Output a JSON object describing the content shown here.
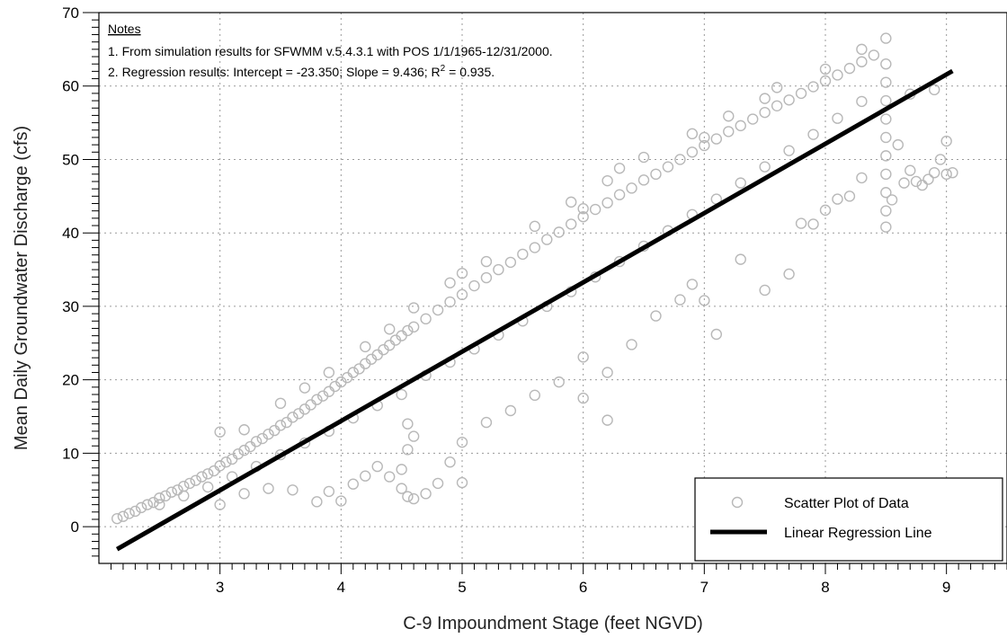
{
  "chart_data": {
    "type": "scatter",
    "title": "",
    "xlabel": "C-9 Impoundment Stage (feet NGVD)",
    "ylabel": "Mean Daily Groundwater Discharge (cfs)",
    "xlim": [
      2,
      9.5
    ],
    "ylim": [
      -5,
      70
    ],
    "x_ticks": [
      3,
      4,
      5,
      6,
      7,
      8,
      9
    ],
    "y_ticks": [
      0,
      10,
      20,
      30,
      40,
      50,
      60,
      70
    ],
    "grid": true,
    "notes": {
      "heading": "Notes",
      "line1": "1. From simulation results for SFWMM v.5.4.3.1 with POS 1/1/1965-12/31/2000.",
      "line2_prefix": "2. Regression results: Intercept = -23.350; Slope = 9.436; R",
      "line2_sup": "2",
      "line2_suffix": " = 0.935."
    },
    "regression": {
      "intercept": -23.35,
      "slope": 9.436,
      "x_range": [
        2.15,
        9.05
      ]
    },
    "legend": {
      "placement": "bottom-right",
      "entries": [
        "Scatter Plot of Data",
        "Linear Regression Line"
      ]
    },
    "series": [
      {
        "name": "Scatter Plot of Data",
        "color": "#b8b8b8",
        "points": [
          [
            2.15,
            1.1
          ],
          [
            2.2,
            1.4
          ],
          [
            2.25,
            1.8
          ],
          [
            2.3,
            2.1
          ],
          [
            2.35,
            2.6
          ],
          [
            2.4,
            3.0
          ],
          [
            2.45,
            3.3
          ],
          [
            2.5,
            3.9
          ],
          [
            2.55,
            4.2
          ],
          [
            2.6,
            4.7
          ],
          [
            2.65,
            5.0
          ],
          [
            2.7,
            5.5
          ],
          [
            2.75,
            5.9
          ],
          [
            2.8,
            6.3
          ],
          [
            2.85,
            6.8
          ],
          [
            2.9,
            7.2
          ],
          [
            2.95,
            7.6
          ],
          [
            3.0,
            8.3
          ],
          [
            3.05,
            8.8
          ],
          [
            3.1,
            9.2
          ],
          [
            3.15,
            9.9
          ],
          [
            3.2,
            10.4
          ],
          [
            3.25,
            10.9
          ],
          [
            3.3,
            11.6
          ],
          [
            3.35,
            12.0
          ],
          [
            3.4,
            12.6
          ],
          [
            3.45,
            13.1
          ],
          [
            3.5,
            13.8
          ],
          [
            3.55,
            14.2
          ],
          [
            3.6,
            14.9
          ],
          [
            3.65,
            15.4
          ],
          [
            3.7,
            16.0
          ],
          [
            3.75,
            16.6
          ],
          [
            3.8,
            17.3
          ],
          [
            3.85,
            17.8
          ],
          [
            3.9,
            18.4
          ],
          [
            3.95,
            19.1
          ],
          [
            4.0,
            19.7
          ],
          [
            4.05,
            20.3
          ],
          [
            4.1,
            21.0
          ],
          [
            4.15,
            21.5
          ],
          [
            4.2,
            22.2
          ],
          [
            4.25,
            22.8
          ],
          [
            4.3,
            23.4
          ],
          [
            4.35,
            24.1
          ],
          [
            4.4,
            24.7
          ],
          [
            4.45,
            25.4
          ],
          [
            4.5,
            26.0
          ],
          [
            4.55,
            26.7
          ],
          [
            4.6,
            27.2
          ],
          [
            4.7,
            28.3
          ],
          [
            4.8,
            29.5
          ],
          [
            4.9,
            30.6
          ],
          [
            5.0,
            31.6
          ],
          [
            5.1,
            32.8
          ],
          [
            5.2,
            33.9
          ],
          [
            5.3,
            35.0
          ],
          [
            5.4,
            36.0
          ],
          [
            5.5,
            37.1
          ],
          [
            5.6,
            38.0
          ],
          [
            5.7,
            39.1
          ],
          [
            5.8,
            40.1
          ],
          [
            5.9,
            41.2
          ],
          [
            6.0,
            42.2
          ],
          [
            6.1,
            43.2
          ],
          [
            6.2,
            44.1
          ],
          [
            6.3,
            45.2
          ],
          [
            6.4,
            46.1
          ],
          [
            6.5,
            47.2
          ],
          [
            6.6,
            48.0
          ],
          [
            6.7,
            49.0
          ],
          [
            6.8,
            50.0
          ],
          [
            6.9,
            51.0
          ],
          [
            7.0,
            51.9
          ],
          [
            7.1,
            52.8
          ],
          [
            7.2,
            53.8
          ],
          [
            7.3,
            54.6
          ],
          [
            7.4,
            55.5
          ],
          [
            7.5,
            56.4
          ],
          [
            7.6,
            57.3
          ],
          [
            7.7,
            58.1
          ],
          [
            7.8,
            59.0
          ],
          [
            7.9,
            59.9
          ],
          [
            8.0,
            60.7
          ],
          [
            8.1,
            61.5
          ],
          [
            8.2,
            62.4
          ],
          [
            8.3,
            63.3
          ],
          [
            8.4,
            64.2
          ],
          [
            8.5,
            66.5
          ],
          [
            2.5,
            3.0
          ],
          [
            2.7,
            4.2
          ],
          [
            2.9,
            5.4
          ],
          [
            3.1,
            6.8
          ],
          [
            3.3,
            8.2
          ],
          [
            3.5,
            9.8
          ],
          [
            3.7,
            11.4
          ],
          [
            3.9,
            13.0
          ],
          [
            4.1,
            14.8
          ],
          [
            4.3,
            16.5
          ],
          [
            4.5,
            18.0
          ],
          [
            4.7,
            20.6
          ],
          [
            4.9,
            22.4
          ],
          [
            5.1,
            24.2
          ],
          [
            5.3,
            26.1
          ],
          [
            5.5,
            28.0
          ],
          [
            5.7,
            30.0
          ],
          [
            5.9,
            32.0
          ],
          [
            6.1,
            34.0
          ],
          [
            6.3,
            36.1
          ],
          [
            6.5,
            38.2
          ],
          [
            6.7,
            40.3
          ],
          [
            6.9,
            42.5
          ],
          [
            7.1,
            44.6
          ],
          [
            7.3,
            46.8
          ],
          [
            7.5,
            49.0
          ],
          [
            7.7,
            51.2
          ],
          [
            7.9,
            53.4
          ],
          [
            8.1,
            55.6
          ],
          [
            8.3,
            57.9
          ],
          [
            3.0,
            3.0
          ],
          [
            3.2,
            4.5
          ],
          [
            3.4,
            5.2
          ],
          [
            3.6,
            5.0
          ],
          [
            3.8,
            3.4
          ],
          [
            3.9,
            4.8
          ],
          [
            4.0,
            3.5
          ],
          [
            4.1,
            5.8
          ],
          [
            4.2,
            6.9
          ],
          [
            4.3,
            8.2
          ],
          [
            4.4,
            6.8
          ],
          [
            4.5,
            5.2
          ],
          [
            4.5,
            7.8
          ],
          [
            4.55,
            4.1
          ],
          [
            4.55,
            10.5
          ],
          [
            4.55,
            14.0
          ],
          [
            4.6,
            3.8
          ],
          [
            4.6,
            12.3
          ],
          [
            4.7,
            4.5
          ],
          [
            4.8,
            5.9
          ],
          [
            4.9,
            8.8
          ],
          [
            5.0,
            6.0
          ],
          [
            5.0,
            11.5
          ],
          [
            5.2,
            14.2
          ],
          [
            5.4,
            15.8
          ],
          [
            5.6,
            17.9
          ],
          [
            5.8,
            19.7
          ],
          [
            6.0,
            17.5
          ],
          [
            6.0,
            23.1
          ],
          [
            6.2,
            14.5
          ],
          [
            6.2,
            21.0
          ],
          [
            6.4,
            24.8
          ],
          [
            6.6,
            28.7
          ],
          [
            6.8,
            30.9
          ],
          [
            6.9,
            33.0
          ],
          [
            7.0,
            30.8
          ],
          [
            7.1,
            26.2
          ],
          [
            7.3,
            36.4
          ],
          [
            7.5,
            32.2
          ],
          [
            7.7,
            34.4
          ],
          [
            7.8,
            41.3
          ],
          [
            7.9,
            41.2
          ],
          [
            8.0,
            43.1
          ],
          [
            8.1,
            44.6
          ],
          [
            8.2,
            45.0
          ],
          [
            8.3,
            47.5
          ],
          [
            8.5,
            40.8
          ],
          [
            8.5,
            43.0
          ],
          [
            8.5,
            45.5
          ],
          [
            8.5,
            48.0
          ],
          [
            8.5,
            50.5
          ],
          [
            8.5,
            53.0
          ],
          [
            8.5,
            55.5
          ],
          [
            8.5,
            58.0
          ],
          [
            8.5,
            60.5
          ],
          [
            8.5,
            63.0
          ],
          [
            8.55,
            44.5
          ],
          [
            8.6,
            52.0
          ],
          [
            8.65,
            46.8
          ],
          [
            8.7,
            48.5
          ],
          [
            8.75,
            47.0
          ],
          [
            8.8,
            46.5
          ],
          [
            8.85,
            47.3
          ],
          [
            8.9,
            48.2
          ],
          [
            8.95,
            50.0
          ],
          [
            9.0,
            52.5
          ],
          [
            9.0,
            48.0
          ],
          [
            9.05,
            48.2
          ],
          [
            8.9,
            59.5
          ],
          [
            8.7,
            58.9
          ],
          [
            7.5,
            58.3
          ],
          [
            7.2,
            55.9
          ],
          [
            6.9,
            53.5
          ],
          [
            6.5,
            50.3
          ],
          [
            6.2,
            47.1
          ],
          [
            5.9,
            44.2
          ],
          [
            5.6,
            40.9
          ],
          [
            5.2,
            36.1
          ],
          [
            4.9,
            33.2
          ],
          [
            4.6,
            29.8
          ],
          [
            4.4,
            26.9
          ],
          [
            4.2,
            24.5
          ],
          [
            3.9,
            21.0
          ],
          [
            3.7,
            18.9
          ],
          [
            3.5,
            16.8
          ],
          [
            3.2,
            13.2
          ],
          [
            3.0,
            12.9
          ],
          [
            5.0,
            34.5
          ],
          [
            6.0,
            43.3
          ],
          [
            6.3,
            48.8
          ],
          [
            7.0,
            53.0
          ],
          [
            7.6,
            59.8
          ],
          [
            8.0,
            62.3
          ],
          [
            8.3,
            65.0
          ]
        ]
      },
      {
        "name": "Linear Regression Line",
        "color": "#000000"
      }
    ]
  }
}
